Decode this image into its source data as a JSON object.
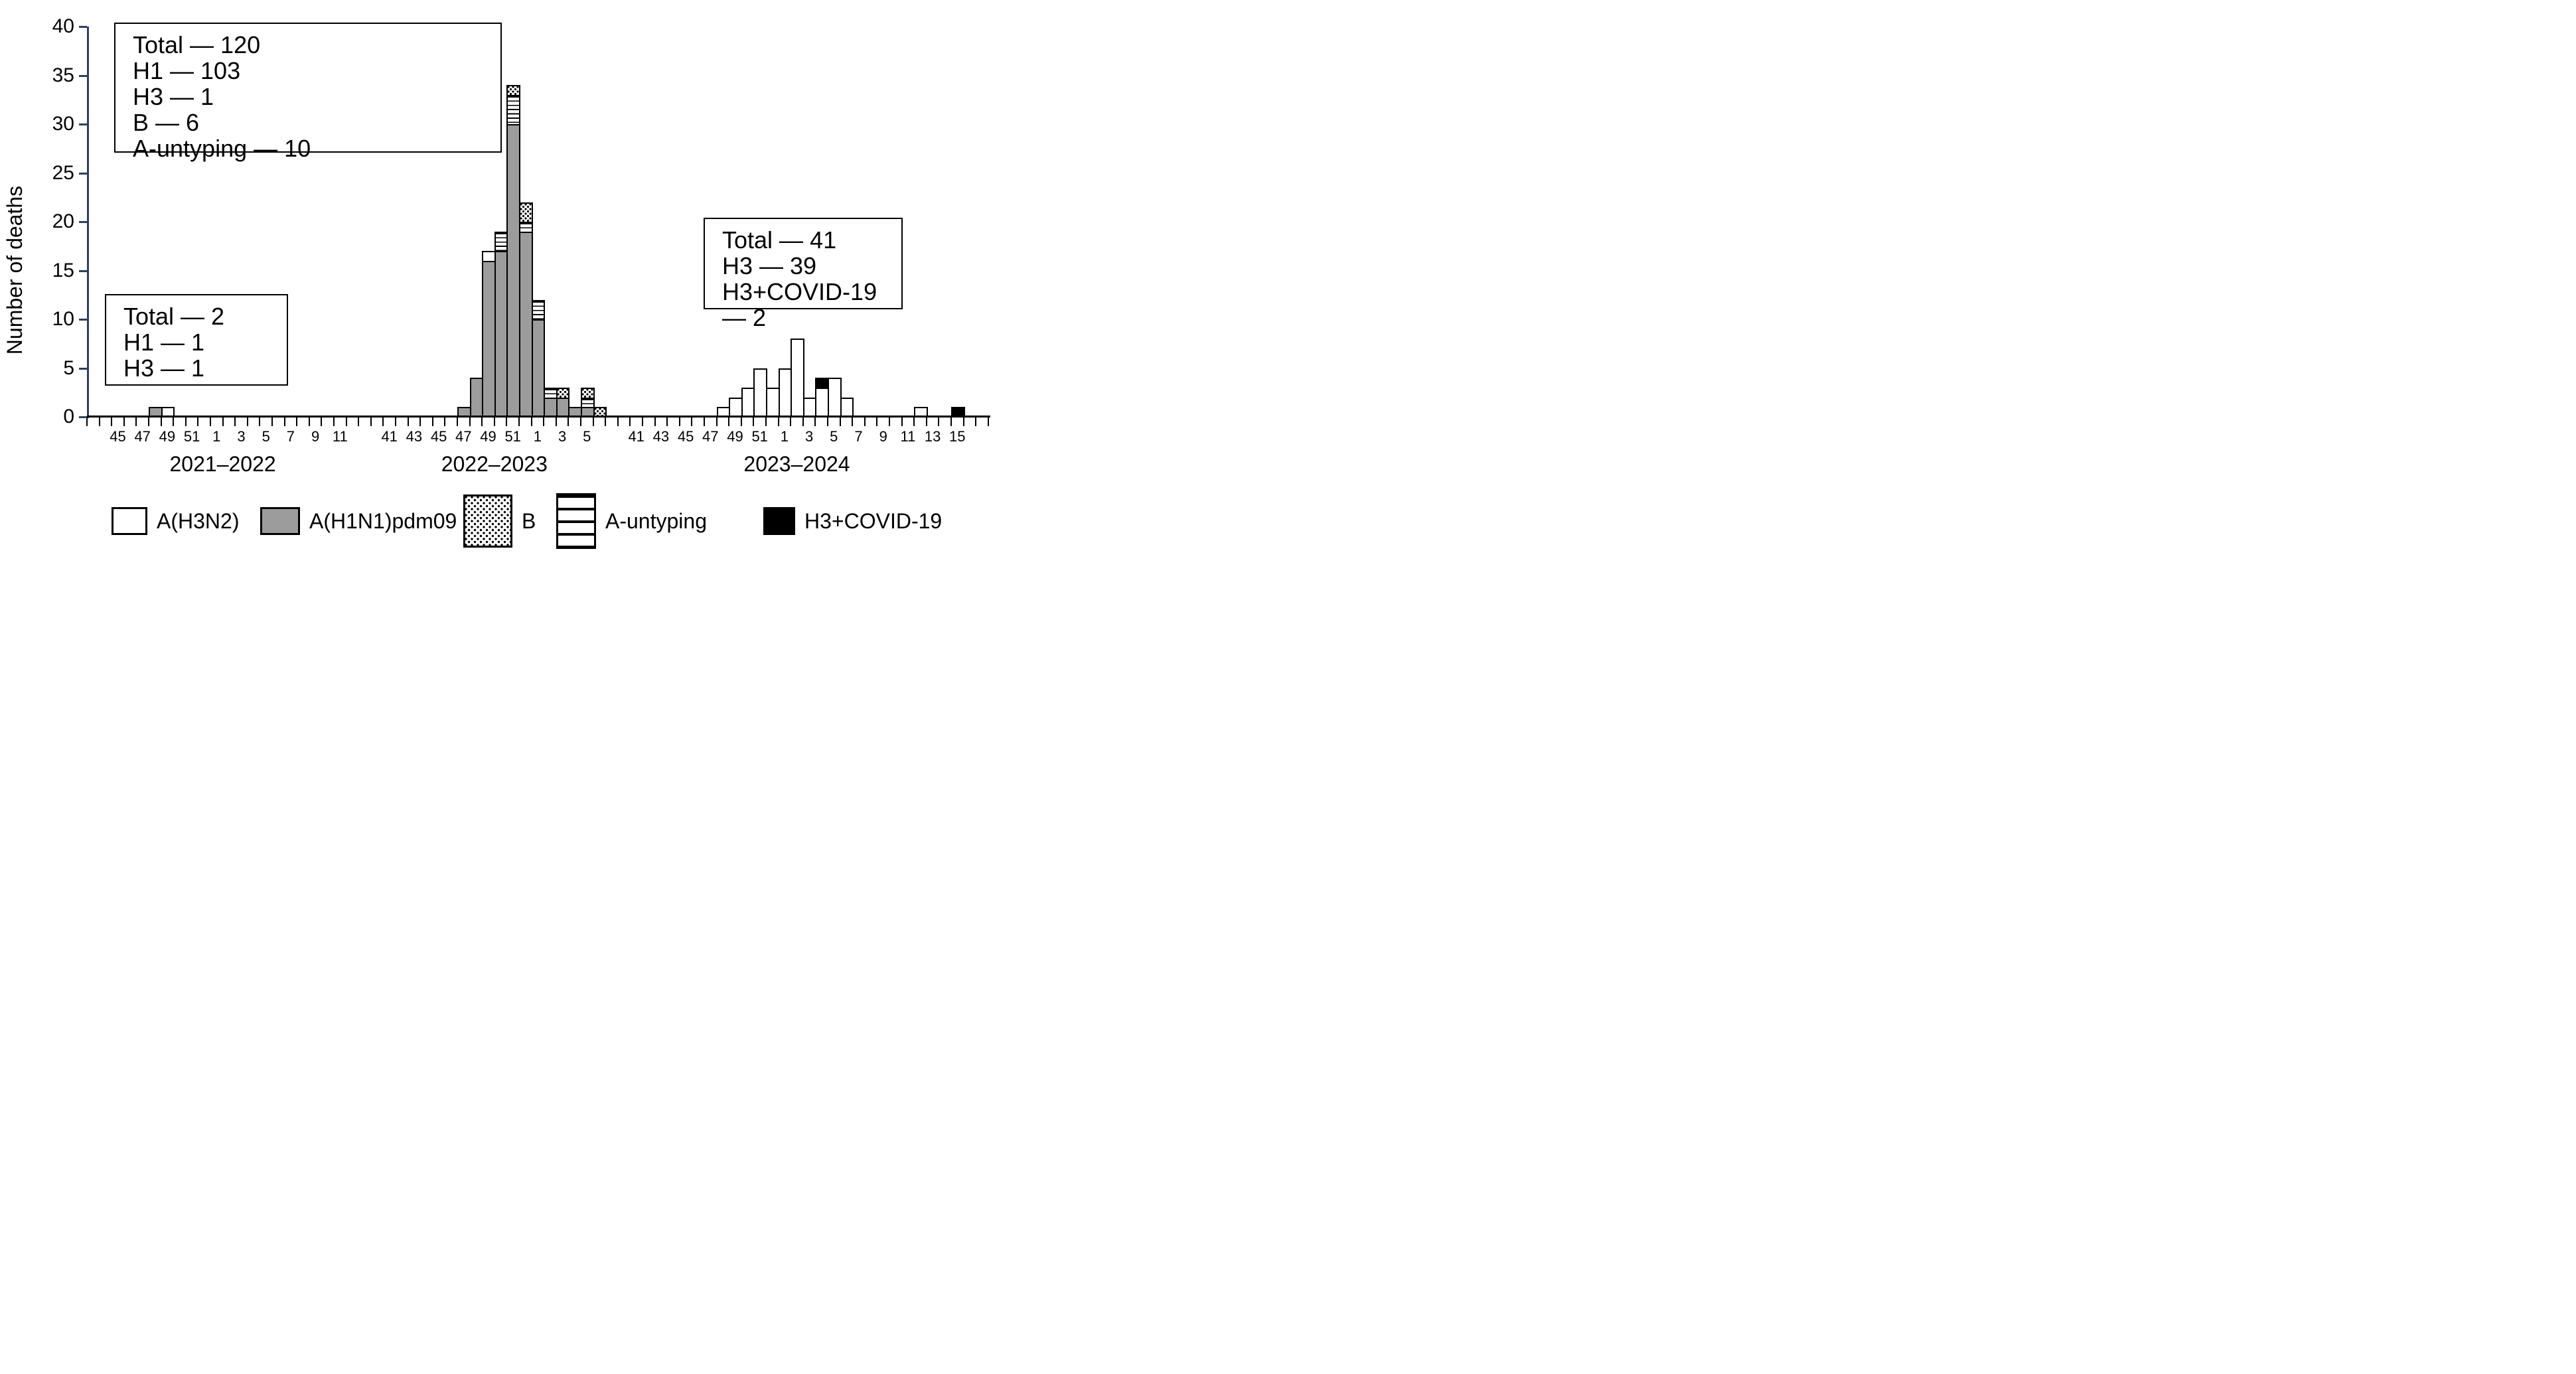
{
  "chart_data": {
    "type": "bar",
    "stacked": true,
    "title": "",
    "xlabel": "",
    "ylabel": "Number of deaths",
    "ylim": [
      0,
      40
    ],
    "ytick_step": 5,
    "grid": false,
    "legend_position": "bottom",
    "stack_order": [
      "A(H1N1)pdm09",
      "A(H3N2)",
      "A-untyping",
      "B",
      "H3+COVID-19"
    ],
    "groups": [
      {
        "season": "2021–2022",
        "weeks": [
          43,
          44,
          45,
          46,
          47,
          48,
          49,
          50,
          51,
          52,
          1,
          2,
          3,
          4,
          5,
          6,
          7,
          8,
          9,
          10,
          11,
          12
        ],
        "labeled_weeks": [
          45,
          47,
          49,
          51,
          1,
          3,
          5,
          7,
          9,
          11
        ],
        "series": {
          "A(H1N1)pdm09": {
            "48": 1
          },
          "A(H3N2)": {
            "49": 1
          }
        }
      },
      {
        "season": "2022–2023",
        "weeks": [
          41,
          42,
          43,
          44,
          45,
          46,
          47,
          48,
          49,
          50,
          51,
          52,
          1,
          2,
          3,
          4,
          5,
          6
        ],
        "labeled_weeks": [
          41,
          43,
          45,
          47,
          49,
          51,
          1,
          3,
          5
        ],
        "series": {
          "A(H1N1)pdm09": {
            "47": 1,
            "48": 4,
            "49": 16,
            "50": 17,
            "51": 30,
            "52": 19,
            "1": 10,
            "2": 2,
            "3": 2,
            "4": 1,
            "5": 1
          },
          "A(H3N2)": {
            "49": 1
          },
          "A-untyping": {
            "50": 2,
            "51": 3,
            "52": 1,
            "1": 2,
            "2": 1,
            "5": 1
          },
          "B": {
            "51": 1,
            "52": 2,
            "3": 1,
            "5": 1,
            "6": 1
          }
        }
      },
      {
        "season": "2023–2024",
        "weeks": [
          41,
          42,
          43,
          44,
          45,
          46,
          47,
          48,
          49,
          50,
          51,
          52,
          1,
          2,
          3,
          4,
          5,
          6,
          7,
          8,
          9,
          10,
          11,
          12,
          13,
          14,
          15
        ],
        "labeled_weeks": [
          41,
          43,
          45,
          47,
          49,
          51,
          1,
          3,
          5,
          7,
          9,
          11,
          13,
          15
        ],
        "series": {
          "A(H3N2)": {
            "48": 1,
            "49": 2,
            "50": 3,
            "51": 5,
            "52": 3,
            "1": 5,
            "2": 8,
            "3": 2,
            "4": 3,
            "5": 4,
            "6": 2,
            "12": 1
          },
          "H3+COVID-19": {
            "4": 1,
            "15": 1
          }
        }
      }
    ]
  },
  "y_axis": {
    "title": "Number of deaths"
  },
  "annotations": {
    "box_2022_2023": {
      "lines": [
        "Total — 120",
        "H1 — 103",
        "H3 — 1",
        "B — 6",
        "A-untyping — 10"
      ]
    },
    "box_2021_2022": {
      "lines": [
        "Total — 2",
        "H1 — 1",
        "H3 — 1"
      ]
    },
    "box_2023_2024": {
      "lines": [
        "Total — 41",
        "H3 — 39",
        "H3+COVID-19 — 2"
      ]
    }
  },
  "legend": {
    "items": [
      {
        "label": "A(H3N2)",
        "key": "h3n2"
      },
      {
        "label": "A(H1N1)pdm09",
        "key": "h1n1"
      },
      {
        "label": "B",
        "key": "b"
      },
      {
        "label": "A-untyping",
        "key": "au"
      },
      {
        "label": "H3+COVID-19",
        "key": "covid"
      }
    ]
  },
  "colors": {
    "h1n1_fill": "#9c9c9c",
    "h3n2_fill": "#ffffff",
    "covid_fill": "#000000",
    "outline": "#000000",
    "y_axis": "#2e3f60",
    "x_axis": "#000000"
  }
}
